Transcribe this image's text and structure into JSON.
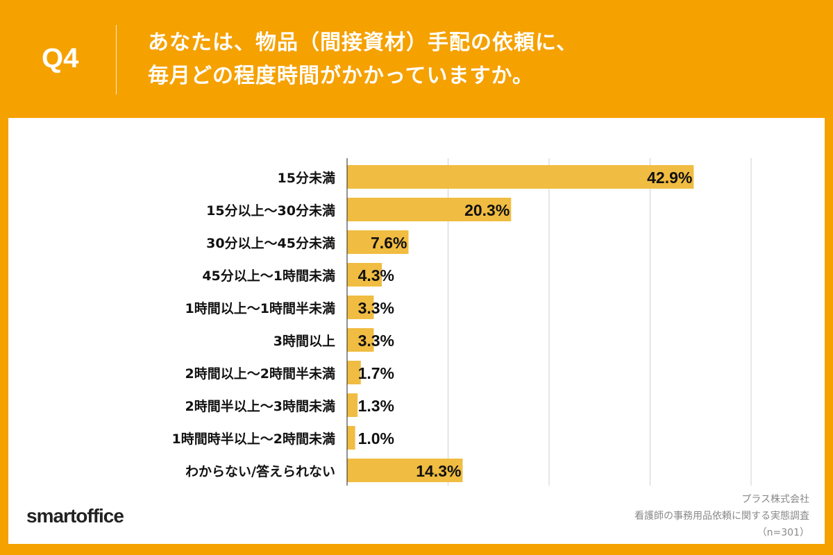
{
  "header": {
    "question_no": "Q4",
    "title_line1": "あなたは、物品（間接資材）手配の依頼に、",
    "title_line2": "毎月どの程度時間がかかっていますか。"
  },
  "footer": {
    "logo": "smartoffice",
    "company": "プラス株式会社",
    "survey": "看護師の事務用品依頼に関する実態調査",
    "sample": "（n=301）"
  },
  "colors": {
    "background": "#F5A100",
    "bar": "#F0BC41"
  },
  "chart_data": {
    "type": "bar",
    "orientation": "horizontal",
    "categories": [
      "15分未満",
      "15分以上〜30分未満",
      "30分以上〜45分未満",
      "45分以上〜1時間未満",
      "1時間以上〜1時間半未満",
      "3時間以上",
      "2時間以上〜2時間半未満",
      "2時間半以上〜3時間未満",
      "1時間時半以上〜2時間未満",
      "わからない/答えられない"
    ],
    "values": [
      42.9,
      20.3,
      7.6,
      4.3,
      3.3,
      3.3,
      1.7,
      1.3,
      1.0,
      14.3
    ],
    "value_labels": [
      "42.9%",
      "20.3%",
      "7.6%",
      "4.3%",
      "3.3%",
      "3.3%",
      "1.7%",
      "1.3%",
      "1.0%",
      "14.3%"
    ],
    "xlim": [
      0,
      50
    ],
    "grid": true,
    "unit": "%"
  }
}
